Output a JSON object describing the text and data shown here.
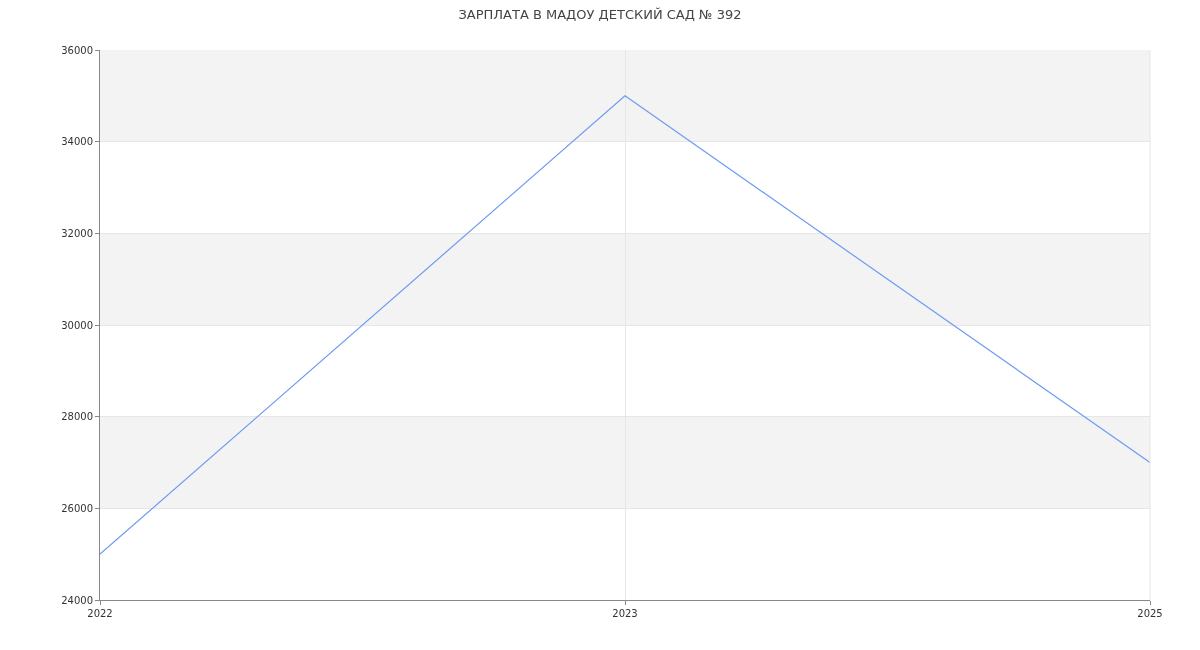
{
  "chart_data": {
    "type": "line",
    "title": "ЗАРПЛАТА В МАДОУ ДЕТСКИЙ САД № 392",
    "categories": [
      "2022",
      "2023",
      "2025"
    ],
    "series": [
      {
        "color": "#6d9bf1",
        "values": [
          25000,
          35000,
          27000
        ]
      }
    ],
    "ylim": [
      24000,
      36000
    ],
    "yticks": [
      24000,
      26000,
      28000,
      30000,
      32000,
      34000,
      36000
    ],
    "bands": [
      {
        "axis": "y",
        "from": 26000,
        "to": 28000,
        "color": "#f3f3f3"
      },
      {
        "axis": "y",
        "from": 30000,
        "to": 32000,
        "color": "#f3f3f3"
      },
      {
        "axis": "y",
        "from": 34000,
        "to": 36000,
        "color": "#f3f3f3"
      }
    ],
    "grid": true,
    "marker": "none",
    "line_style": "solid"
  }
}
